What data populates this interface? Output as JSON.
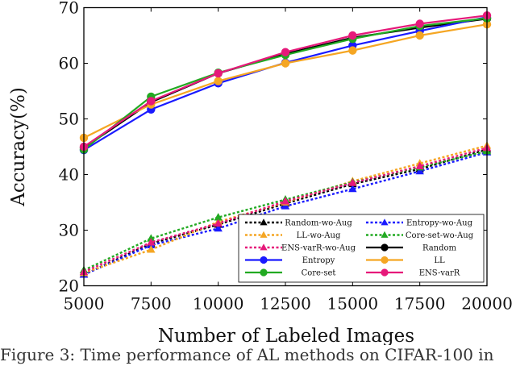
{
  "chart_data": {
    "type": "line",
    "title": "",
    "xlabel": "Number of Labeled Images",
    "ylabel": "Accuracy(%)",
    "x": [
      5000,
      7500,
      10000,
      12500,
      15000,
      17500,
      20000
    ],
    "xlim": [
      5000,
      20000
    ],
    "ylim": [
      20,
      70
    ],
    "xticks": [
      5000,
      7500,
      10000,
      12500,
      15000,
      17500,
      20000
    ],
    "yticks": [
      20,
      30,
      40,
      50,
      60,
      70
    ],
    "grid": false,
    "legend_position": "lower-right, inside plot",
    "series": [
      {
        "name": "Random-wo-Aug",
        "color": "#000000",
        "dashed": true,
        "marker": "triangle",
        "values": [
          22.0,
          27.6,
          31.0,
          34.8,
          38.3,
          41.0,
          44.5
        ]
      },
      {
        "name": "Entropy-wo-Aug",
        "color": "#1a1aff",
        "dashed": true,
        "marker": "triangle",
        "values": [
          22.0,
          27.3,
          30.3,
          34.3,
          37.4,
          40.6,
          44.0
        ]
      },
      {
        "name": "LL-wo-Aug",
        "color": "#f5a623",
        "dashed": true,
        "marker": "triangle",
        "values": [
          22.3,
          26.5,
          31.5,
          35.0,
          38.8,
          42.0,
          45.2
        ]
      },
      {
        "name": "Core-set-wo-Aug",
        "color": "#22aa22",
        "dashed": true,
        "marker": "triangle",
        "values": [
          22.8,
          28.5,
          32.3,
          35.5,
          38.6,
          41.3,
          44.2
        ]
      },
      {
        "name": "ENS-varR-wo-Aug",
        "color": "#e6197a",
        "dashed": true,
        "marker": "triangle",
        "values": [
          22.5,
          27.8,
          31.2,
          35.2,
          38.5,
          41.5,
          44.8
        ]
      },
      {
        "name": "Random",
        "color": "#000000",
        "dashed": false,
        "marker": "circle",
        "values": [
          44.8,
          53.0,
          58.2,
          61.7,
          64.6,
          66.4,
          68.0
        ]
      },
      {
        "name": "Entropy",
        "color": "#1a1aff",
        "dashed": false,
        "marker": "circle",
        "values": [
          44.4,
          51.7,
          56.4,
          60.1,
          63.2,
          65.8,
          68.3
        ]
      },
      {
        "name": "LL",
        "color": "#f5a623",
        "dashed": false,
        "marker": "circle",
        "values": [
          46.6,
          52.6,
          56.8,
          60.0,
          62.3,
          65.0,
          67.0
        ]
      },
      {
        "name": "Core-set",
        "color": "#22aa22",
        "dashed": false,
        "marker": "circle",
        "values": [
          44.5,
          54.0,
          58.3,
          61.5,
          64.4,
          66.7,
          68.1
        ]
      },
      {
        "name": "ENS-varR",
        "color": "#e6197a",
        "dashed": false,
        "marker": "circle",
        "values": [
          45.0,
          53.2,
          58.2,
          62.0,
          65.0,
          67.1,
          68.6
        ]
      }
    ],
    "legend_order": [
      "Random-wo-Aug",
      "Entropy-wo-Aug",
      "LL-wo-Aug",
      "Core-set-wo-Aug",
      "ENS-varR-wo-Aug",
      "Random",
      "Entropy",
      "LL",
      "Core-set",
      "ENS-varR"
    ]
  },
  "caption": "Figure 3: Time performance of AL methods on CIFAR-100 in"
}
